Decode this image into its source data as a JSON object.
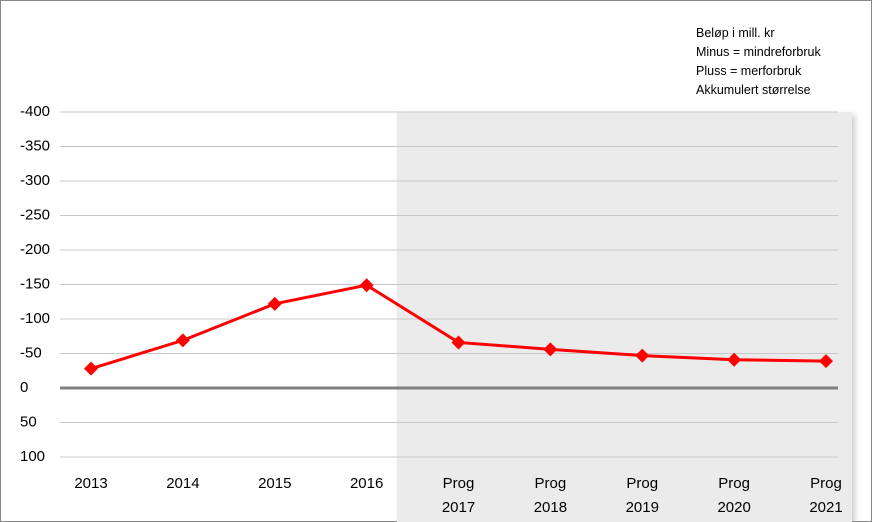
{
  "chart_data": {
    "type": "line",
    "annotations": [
      "Beløp i mill. kr",
      "Minus = mindreforbruk",
      "Pluss = merforbruk",
      "Akkumulert størrelse"
    ],
    "categories": [
      "2013",
      "2014",
      "2015",
      "2016",
      "Prog 2017",
      "Prog 2018",
      "Prog 2019",
      "Prog 2020",
      "Prog 2021"
    ],
    "series": [
      {
        "name": "Akkumulert",
        "color": "#ff0000",
        "values": [
          -28,
          -69,
          -122,
          -149,
          -66,
          -56,
          -47,
          -41,
          -39
        ]
      }
    ],
    "ylim": [
      100,
      -400
    ],
    "yticks": [
      -400,
      -350,
      -300,
      -250,
      -200,
      -150,
      -100,
      -50,
      0,
      50,
      100
    ],
    "grid": true
  }
}
